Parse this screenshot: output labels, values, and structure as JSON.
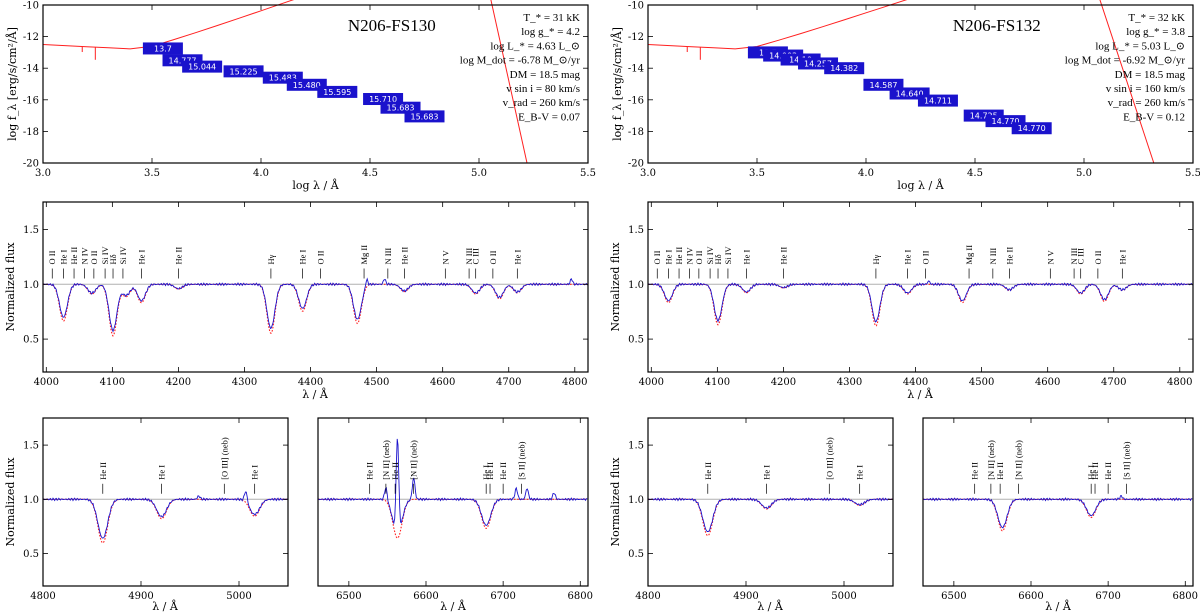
{
  "stars": [
    {
      "name": "N206-FS130",
      "params": [
        "T_* = 31 kK",
        "log g_* = 4.2",
        "log L_* = 4.63 L_⊙",
        "log M_dot = -6.78 M_⊙/yr",
        "DM = 18.5 mag",
        "v sin i = 80 km/s",
        "v_rad = 260 km/s",
        "E_B-V = 0.07"
      ],
      "photometry": [
        {
          "x": 3.55,
          "mag": "13.7"
        },
        {
          "x": 3.64,
          "mag": "14.777"
        },
        {
          "x": 3.73,
          "mag": "15.044"
        },
        {
          "x": 3.92,
          "mag": "15.225"
        },
        {
          "x": 4.1,
          "mag": "15.483"
        },
        {
          "x": 4.21,
          "mag": "15.480"
        },
        {
          "x": 4.35,
          "mag": "15.595"
        },
        {
          "x": 4.56,
          "mag": "15.710"
        },
        {
          "x": 4.64,
          "mag": "15.683"
        },
        {
          "x": 4.75,
          "mag": "15.683"
        }
      ],
      "sed_y": [
        -12.75,
        -13.5,
        -13.9,
        -14.2,
        -14.6,
        -15.05,
        -15.5,
        -15.95,
        -16.5,
        -17.05
      ],
      "model_end": [
        5.22,
        -20.0
      ],
      "lines_main": [
        {
          "x": 4009,
          "l": "O II"
        },
        {
          "x": 4026,
          "l": "He I"
        },
        {
          "x": 4042,
          "l": "He II"
        },
        {
          "x": 4058,
          "l": "N IV"
        },
        {
          "x": 4072,
          "l": "O II"
        },
        {
          "x": 4089,
          "l": "Si IV"
        },
        {
          "x": 4101,
          "l": "Hδ"
        },
        {
          "x": 4116,
          "l": "Si IV"
        },
        {
          "x": 4144,
          "l": "He I"
        },
        {
          "x": 4200,
          "l": "He II"
        },
        {
          "x": 4340,
          "l": "Hγ"
        },
        {
          "x": 4388,
          "l": "He I"
        },
        {
          "x": 4415,
          "l": "O II"
        },
        {
          "x": 4481,
          "l": "Mg II"
        },
        {
          "x": 4517,
          "l": "N III"
        },
        {
          "x": 4542,
          "l": "He II"
        },
        {
          "x": 4604,
          "l": "N V"
        },
        {
          "x": 4640,
          "l": "N III"
        },
        {
          "x": 4650,
          "l": "C III"
        },
        {
          "x": 4676,
          "l": "O II"
        },
        {
          "x": 4713,
          "l": "He I"
        }
      ],
      "absorption_main": [
        {
          "x": 4026,
          "d": 0.3
        },
        {
          "x": 4069,
          "d": 0.08
        },
        {
          "x": 4101,
          "d": 0.42
        },
        {
          "x": 4121,
          "d": 0.1
        },
        {
          "x": 4144,
          "d": 0.15
        },
        {
          "x": 4200,
          "d": 0.04
        },
        {
          "x": 4340,
          "d": 0.4
        },
        {
          "x": 4388,
          "d": 0.22
        },
        {
          "x": 4471,
          "d": 0.32
        },
        {
          "x": 4542,
          "d": 0.06
        },
        {
          "x": 4650,
          "d": 0.08
        },
        {
          "x": 4686,
          "d": 0.12
        },
        {
          "x": 4713,
          "d": 0.07
        }
      ],
      "emission_main": [
        {
          "x": 4485,
          "h": 0.06
        },
        {
          "x": 4512,
          "h": 0.05
        },
        {
          "x": 4795,
          "h": 0.05
        }
      ],
      "lines_b1": [
        {
          "x": 4861,
          "l": "He II"
        },
        {
          "x": 4921,
          "l": "He I"
        },
        {
          "x": 4985,
          "l": "[O III] (neb)"
        },
        {
          "x": 5016,
          "l": "He I"
        }
      ],
      "abs_b1": [
        {
          "x": 4861,
          "d": 0.36
        },
        {
          "x": 4921,
          "d": 0.16
        },
        {
          "x": 5016,
          "d": 0.14
        }
      ],
      "em_b1": [
        {
          "x": 4959,
          "h": 0.03
        },
        {
          "x": 5007,
          "h": 0.1
        }
      ],
      "lines_b2": [
        {
          "x": 6527,
          "l": "He II"
        },
        {
          "x": 6548,
          "l": "[N II] (neb)"
        },
        {
          "x": 6560,
          "l": "He II"
        },
        {
          "x": 6584,
          "l": "[N II] (neb)"
        },
        {
          "x": 6678,
          "l": "He I"
        },
        {
          "x": 6683,
          "l": "He II"
        },
        {
          "x": 6700,
          "l": "He II"
        },
        {
          "x": 6724,
          "l": "[S II] (neb)"
        }
      ],
      "abs_b2": [
        {
          "x": 6563,
          "d": 0.32
        },
        {
          "x": 6678,
          "d": 0.24
        }
      ],
      "em_b2": [
        {
          "x": 6548,
          "h": 0.12
        },
        {
          "x": 6563,
          "h": 0.9
        },
        {
          "x": 6584,
          "h": 0.2
        },
        {
          "x": 6717,
          "h": 0.1
        },
        {
          "x": 6731,
          "h": 0.1
        },
        {
          "x": 6766,
          "h": 0.06
        }
      ]
    },
    {
      "name": "N206-FS132",
      "params": [
        "T_* = 32 kK",
        "log g_* = 3.8",
        "log L_* = 5.03 L_⊙",
        "log M_dot = -6.92 M_⊙/yr",
        "DM = 18.5 mag",
        "v sin i = 160 km/s",
        "v_rad = 260 km/s",
        "E_B-V = 0.12"
      ],
      "photometry": [
        {
          "x": 3.55,
          "mag": "13.7"
        },
        {
          "x": 3.62,
          "mag": "14.003"
        },
        {
          "x": 3.7,
          "mag": "14.19"
        },
        {
          "x": 3.78,
          "mag": "14.257"
        },
        {
          "x": 3.9,
          "mag": "14.382"
        },
        {
          "x": 4.08,
          "mag": "14.587"
        },
        {
          "x": 4.2,
          "mag": "14.640"
        },
        {
          "x": 4.33,
          "mag": "14.711"
        },
        {
          "x": 4.54,
          "mag": "14.725"
        },
        {
          "x": 4.64,
          "mag": "14.770"
        },
        {
          "x": 4.76,
          "mag": "14.770"
        }
      ],
      "sed_y": [
        -13.0,
        -13.2,
        -13.45,
        -13.7,
        -14.0,
        -15.05,
        -15.6,
        -16.05,
        -17.0,
        -17.35,
        -17.8
      ],
      "model_end": [
        5.32,
        -20.0
      ],
      "lines_main": [
        {
          "x": 4009,
          "l": "O II"
        },
        {
          "x": 4026,
          "l": "He I"
        },
        {
          "x": 4042,
          "l": "He II"
        },
        {
          "x": 4058,
          "l": "N IV"
        },
        {
          "x": 4072,
          "l": "O II"
        },
        {
          "x": 4089,
          "l": "Si IV"
        },
        {
          "x": 4101,
          "l": "Hδ"
        },
        {
          "x": 4116,
          "l": "Si IV"
        },
        {
          "x": 4144,
          "l": "He I"
        },
        {
          "x": 4200,
          "l": "He II"
        },
        {
          "x": 4340,
          "l": "Hγ"
        },
        {
          "x": 4388,
          "l": "He I"
        },
        {
          "x": 4415,
          "l": "O II"
        },
        {
          "x": 4481,
          "l": "Mg II"
        },
        {
          "x": 4517,
          "l": "N III"
        },
        {
          "x": 4542,
          "l": "He II"
        },
        {
          "x": 4604,
          "l": "N V"
        },
        {
          "x": 4640,
          "l": "N III"
        },
        {
          "x": 4650,
          "l": "C III"
        },
        {
          "x": 4676,
          "l": "O II"
        },
        {
          "x": 4713,
          "l": "He I"
        }
      ],
      "absorption_main": [
        {
          "x": 4026,
          "d": 0.15
        },
        {
          "x": 4101,
          "d": 0.33
        },
        {
          "x": 4144,
          "d": 0.07
        },
        {
          "x": 4200,
          "d": 0.03
        },
        {
          "x": 4340,
          "d": 0.34
        },
        {
          "x": 4388,
          "d": 0.08
        },
        {
          "x": 4471,
          "d": 0.15
        },
        {
          "x": 4542,
          "d": 0.05
        },
        {
          "x": 4650,
          "d": 0.08
        },
        {
          "x": 4686,
          "d": 0.14
        },
        {
          "x": 4713,
          "d": 0.05
        }
      ],
      "emission_main": [
        {
          "x": 4420,
          "h": 0.03
        }
      ],
      "lines_b1": [
        {
          "x": 4861,
          "l": "He II"
        },
        {
          "x": 4921,
          "l": "He I"
        },
        {
          "x": 4985,
          "l": "[O III] (neb)"
        },
        {
          "x": 5016,
          "l": "He I"
        }
      ],
      "abs_b1": [
        {
          "x": 4861,
          "d": 0.3
        },
        {
          "x": 4921,
          "d": 0.08
        },
        {
          "x": 5016,
          "d": 0.05
        }
      ],
      "em_b1": [],
      "lines_b2": [
        {
          "x": 6527,
          "l": "He II"
        },
        {
          "x": 6548,
          "l": "[N II] (neb)"
        },
        {
          "x": 6560,
          "l": "He II"
        },
        {
          "x": 6584,
          "l": "[N II] (neb)"
        },
        {
          "x": 6678,
          "l": "He I"
        },
        {
          "x": 6683,
          "l": "He II"
        },
        {
          "x": 6700,
          "l": "He II"
        },
        {
          "x": 6724,
          "l": "[S II] (neb)"
        }
      ],
      "abs_b2": [
        {
          "x": 6563,
          "d": 0.26
        },
        {
          "x": 6678,
          "d": 0.15
        }
      ],
      "em_b2": [
        {
          "x": 6717,
          "h": 0.03
        }
      ]
    }
  ],
  "axes": {
    "sed_xlabel": "log λ / Å",
    "sed_ylabel": "log f_λ [erg/s/cm²/Å]",
    "sed_xlim": [
      3.0,
      5.5
    ],
    "sed_ylim": [
      -20,
      -10
    ],
    "sed_xticks": [
      "3.0",
      "3.5",
      "4.0",
      "4.5",
      "5.0",
      "5.5"
    ],
    "sed_yticks": [
      "-10",
      "-12",
      "-14",
      "-16",
      "-18",
      "-20"
    ],
    "spec_ylabel": "Normalized flux",
    "spec_xlabel": "λ / Å",
    "spec_ylim": [
      0.2,
      1.75
    ],
    "spec_yticks": [
      "0.5",
      "1.0",
      "1.5"
    ],
    "main_xlim": [
      3995,
      4820
    ],
    "main_xticks": [
      "4000",
      "4100",
      "4200",
      "4300",
      "4400",
      "4500",
      "4600",
      "4700",
      "4800"
    ],
    "b1_xlim": [
      4800,
      5050
    ],
    "b1_xticks": [
      "4800",
      "4900",
      "5000"
    ],
    "b2_xlim": [
      6460,
      6810
    ],
    "b2_xticks": [
      "6500",
      "6600",
      "6700",
      "6800"
    ]
  },
  "colors": {
    "model": "#ff2020",
    "observed": "#1a12cc",
    "photometry_box": "#1a12cc",
    "unity": "#b0b0b0"
  }
}
